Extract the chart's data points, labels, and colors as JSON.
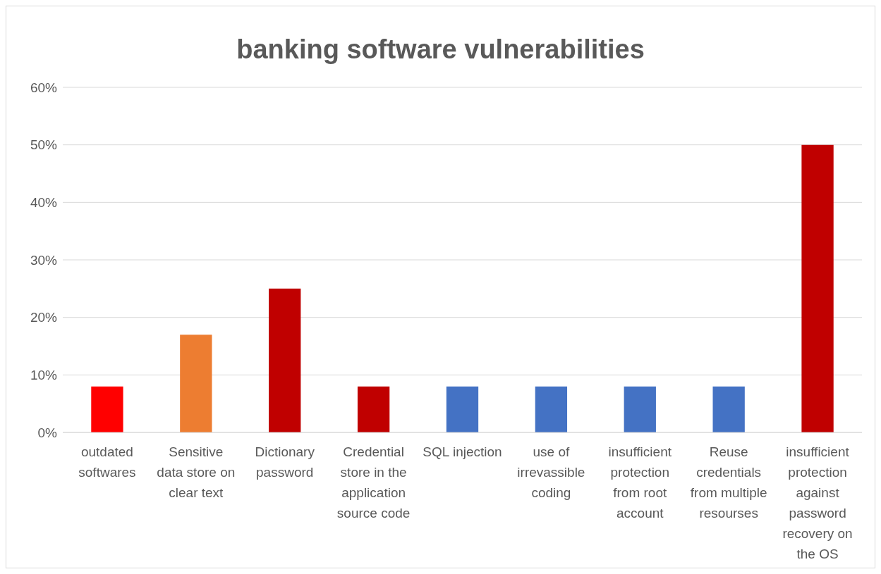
{
  "chart_data": {
    "type": "bar",
    "title": "banking software vulnerabilities",
    "categories": [
      "outdated softwares",
      "Sensitive data store on clear text",
      "Dictionary password",
      "Credential store in the application source code",
      "SQL injection",
      "use of irrevassible coding",
      "insufficient protection from root account",
      "Reuse credentials from multiple resourses",
      "insufficient protection against password recovery on the OS"
    ],
    "values": [
      8,
      17,
      25,
      8,
      8,
      8,
      8,
      8,
      50
    ],
    "colors": [
      "#ff0000",
      "#ed7d31",
      "#c00000",
      "#c00000",
      "#4472c4",
      "#4472c4",
      "#4472c4",
      "#4472c4",
      "#c00000"
    ],
    "ylim": [
      0,
      60
    ],
    "yticks": [
      {
        "value": 0,
        "label": "0%"
      },
      {
        "value": 10,
        "label": "10%"
      },
      {
        "value": 20,
        "label": "20%"
      },
      {
        "value": 30,
        "label": "30%"
      },
      {
        "value": 40,
        "label": "40%"
      },
      {
        "value": 50,
        "label": "50%"
      },
      {
        "value": 60,
        "label": "60%"
      }
    ],
    "grid": "y"
  }
}
